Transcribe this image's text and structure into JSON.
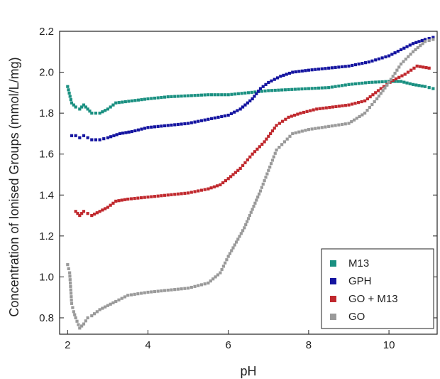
{
  "chart_data": {
    "type": "scatter",
    "xlabel": "pH",
    "ylabel": "Concentration of Ionised Groups (mmol/L/mg)",
    "xlim": [
      1.8,
      11.2
    ],
    "ylim": [
      0.72,
      2.2
    ],
    "xticks": [
      2,
      4,
      6,
      8,
      10
    ],
    "yticks": [
      0.8,
      1.0,
      1.2,
      1.4,
      1.6,
      1.8,
      2.0,
      2.2
    ],
    "legend_position": "bottom-right",
    "grid": false,
    "series": [
      {
        "name": "M13",
        "color": "#1a9081",
        "points": [
          [
            2.0,
            1.93
          ],
          [
            2.1,
            1.85
          ],
          [
            2.2,
            1.83
          ],
          [
            2.3,
            1.82
          ],
          [
            2.4,
            1.84
          ],
          [
            2.5,
            1.82
          ],
          [
            2.6,
            1.8
          ],
          [
            2.8,
            1.8
          ],
          [
            3.0,
            1.82
          ],
          [
            3.2,
            1.85
          ],
          [
            3.6,
            1.86
          ],
          [
            4.0,
            1.87
          ],
          [
            4.5,
            1.88
          ],
          [
            5.0,
            1.885
          ],
          [
            5.5,
            1.89
          ],
          [
            6.0,
            1.89
          ],
          [
            6.5,
            1.9
          ],
          [
            7.0,
            1.91
          ],
          [
            7.5,
            1.915
          ],
          [
            8.0,
            1.92
          ],
          [
            8.5,
            1.925
          ],
          [
            9.0,
            1.94
          ],
          [
            9.5,
            1.95
          ],
          [
            10.0,
            1.955
          ],
          [
            10.3,
            1.955
          ],
          [
            10.6,
            1.94
          ],
          [
            10.9,
            1.93
          ],
          [
            11.1,
            1.92
          ]
        ]
      },
      {
        "name": "GPH",
        "color": "#1414a0",
        "points": [
          [
            2.1,
            1.69
          ],
          [
            2.2,
            1.69
          ],
          [
            2.3,
            1.68
          ],
          [
            2.4,
            1.69
          ],
          [
            2.5,
            1.68
          ],
          [
            2.6,
            1.67
          ],
          [
            2.8,
            1.67
          ],
          [
            3.0,
            1.68
          ],
          [
            3.3,
            1.7
          ],
          [
            3.6,
            1.71
          ],
          [
            4.0,
            1.73
          ],
          [
            4.5,
            1.74
          ],
          [
            5.0,
            1.75
          ],
          [
            5.5,
            1.77
          ],
          [
            6.0,
            1.79
          ],
          [
            6.3,
            1.82
          ],
          [
            6.6,
            1.87
          ],
          [
            6.8,
            1.92
          ],
          [
            7.0,
            1.95
          ],
          [
            7.3,
            1.98
          ],
          [
            7.6,
            2.0
          ],
          [
            8.0,
            2.01
          ],
          [
            8.5,
            2.02
          ],
          [
            9.0,
            2.03
          ],
          [
            9.5,
            2.05
          ],
          [
            10.0,
            2.08
          ],
          [
            10.3,
            2.11
          ],
          [
            10.6,
            2.14
          ],
          [
            10.9,
            2.16
          ],
          [
            11.1,
            2.17
          ]
        ]
      },
      {
        "name": "GO + M13",
        "color": "#c0282d",
        "points": [
          [
            2.2,
            1.32
          ],
          [
            2.3,
            1.3
          ],
          [
            2.4,
            1.32
          ],
          [
            2.5,
            1.31
          ],
          [
            2.6,
            1.3
          ],
          [
            2.8,
            1.32
          ],
          [
            3.0,
            1.34
          ],
          [
            3.2,
            1.37
          ],
          [
            3.5,
            1.38
          ],
          [
            4.0,
            1.39
          ],
          [
            4.5,
            1.4
          ],
          [
            5.0,
            1.41
          ],
          [
            5.5,
            1.43
          ],
          [
            5.8,
            1.45
          ],
          [
            6.0,
            1.48
          ],
          [
            6.3,
            1.53
          ],
          [
            6.6,
            1.6
          ],
          [
            6.9,
            1.66
          ],
          [
            7.2,
            1.74
          ],
          [
            7.5,
            1.78
          ],
          [
            7.8,
            1.8
          ],
          [
            8.2,
            1.82
          ],
          [
            8.6,
            1.83
          ],
          [
            9.0,
            1.84
          ],
          [
            9.4,
            1.86
          ],
          [
            9.8,
            1.92
          ],
          [
            10.1,
            1.96
          ],
          [
            10.4,
            1.99
          ],
          [
            10.7,
            2.03
          ],
          [
            11.0,
            2.02
          ]
        ]
      },
      {
        "name": "GO",
        "color": "#9a9a9a",
        "points": [
          [
            2.0,
            1.06
          ],
          [
            2.05,
            1.02
          ],
          [
            2.1,
            0.87
          ],
          [
            2.15,
            0.83
          ],
          [
            2.2,
            0.8
          ],
          [
            2.3,
            0.75
          ],
          [
            2.4,
            0.77
          ],
          [
            2.5,
            0.8
          ],
          [
            2.6,
            0.81
          ],
          [
            2.8,
            0.84
          ],
          [
            3.0,
            0.86
          ],
          [
            3.2,
            0.88
          ],
          [
            3.5,
            0.91
          ],
          [
            4.0,
            0.925
          ],
          [
            4.5,
            0.935
          ],
          [
            5.0,
            0.945
          ],
          [
            5.5,
            0.97
          ],
          [
            5.8,
            1.02
          ],
          [
            6.0,
            1.1
          ],
          [
            6.2,
            1.17
          ],
          [
            6.4,
            1.24
          ],
          [
            6.6,
            1.33
          ],
          [
            6.8,
            1.42
          ],
          [
            7.0,
            1.52
          ],
          [
            7.2,
            1.62
          ],
          [
            7.4,
            1.66
          ],
          [
            7.6,
            1.7
          ],
          [
            8.0,
            1.72
          ],
          [
            8.5,
            1.735
          ],
          [
            9.0,
            1.75
          ],
          [
            9.4,
            1.8
          ],
          [
            9.7,
            1.87
          ],
          [
            10.0,
            1.95
          ],
          [
            10.3,
            2.04
          ],
          [
            10.6,
            2.1
          ],
          [
            10.9,
            2.15
          ],
          [
            11.1,
            2.16
          ]
        ]
      }
    ]
  }
}
